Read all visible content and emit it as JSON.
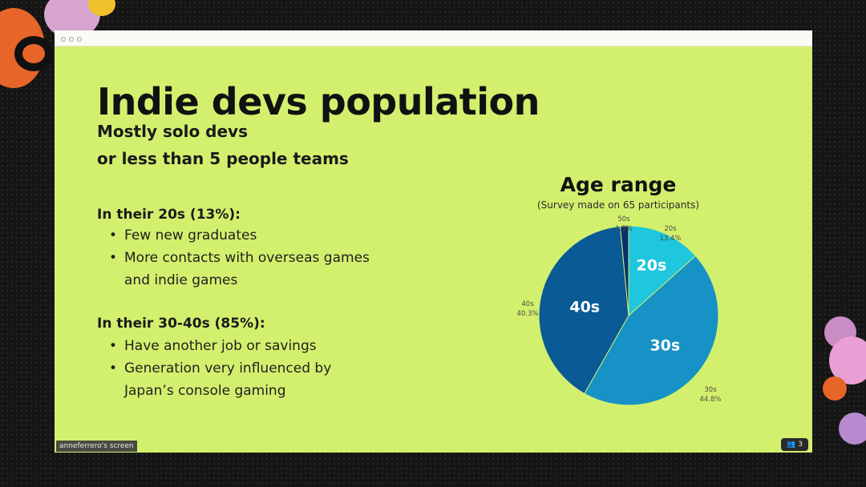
{
  "slide": {
    "title": "Indie devs population",
    "subtitle_lines": [
      "Mostly solo devs",
      "or less than 5 people teams"
    ],
    "sections": [
      {
        "heading": "In their 20s (13%):",
        "bullets": [
          "Few new graduates",
          "More contacts with overseas games and indie games"
        ]
      },
      {
        "heading": "In their 30-40s (85%):",
        "bullets": [
          "Have another job or savings",
          "Generation very influenced by Japan’s console gaming"
        ]
      }
    ]
  },
  "chart_data": {
    "type": "pie",
    "title": "Age range",
    "subtitle": "(Survey made on 65 participants)",
    "slices": [
      {
        "label": "20s",
        "value": 13.4,
        "percent_text": "13.4%",
        "color": "#1ec6de"
      },
      {
        "label": "30s",
        "value": 44.8,
        "percent_text": "44.8%",
        "color": "#1792c6"
      },
      {
        "label": "40s",
        "value": 40.3,
        "percent_text": "40.3%",
        "color": "#0a5a96"
      },
      {
        "label": "50s",
        "value": 1.5,
        "percent_text": "1.5%",
        "color": "#0b2f6e"
      }
    ]
  },
  "meeting": {
    "screen_share_label": "anneferrero's screen",
    "participant_count": "3"
  },
  "colors": {
    "slide_background": "#d2f06e",
    "text": "#111111"
  }
}
